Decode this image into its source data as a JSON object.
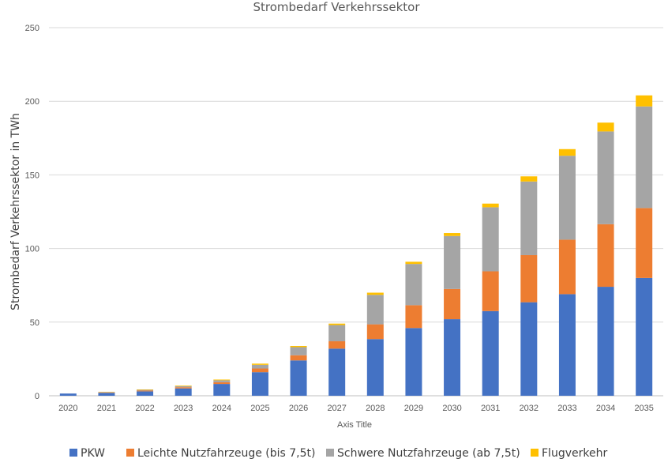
{
  "chart_data": {
    "type": "bar",
    "stacked": true,
    "title": "Strombedarf Verkehrssektor",
    "xlabel": "Axis Title",
    "ylabel": "Strombedarf Verkehrssektor in TWh",
    "ylim": [
      0,
      250
    ],
    "yticks": [
      0,
      50,
      100,
      150,
      200,
      250
    ],
    "grid": true,
    "legend": "bottom",
    "categories": [
      "2020",
      "2021",
      "2022",
      "2023",
      "2024",
      "2025",
      "2026",
      "2027",
      "2028",
      "2029",
      "2030",
      "2031",
      "2032",
      "2033",
      "2034",
      "2035"
    ],
    "series": [
      {
        "name": "PKW",
        "color": "#4472C4",
        "values": [
          1.5,
          2,
          3,
          5,
          8,
          16,
          24,
          32,
          38.5,
          46,
          52,
          57.5,
          63.5,
          69,
          74,
          80
        ]
      },
      {
        "name": "Leichte Nutzfahrzeuge (bis 7,5t)",
        "color": "#ED7D31",
        "values": [
          0,
          0.3,
          0.5,
          0.8,
          1.2,
          2.5,
          3.5,
          5,
          10,
          15.5,
          20.5,
          27,
          32,
          37,
          42.5,
          47.5
        ]
      },
      {
        "name": "Schwere Nutzfahrzeuge (ab 7,5t)",
        "color": "#A5A5A5",
        "values": [
          0,
          0.2,
          0.5,
          0.7,
          1.3,
          2.5,
          5.5,
          11,
          20,
          28,
          36,
          43.5,
          50,
          57,
          63,
          69
        ]
      },
      {
        "name": "Flugverkehr",
        "color": "#FFC000",
        "values": [
          0,
          0.2,
          0.3,
          0.4,
          0.5,
          0.8,
          0.8,
          1,
          1.5,
          1.5,
          2,
          2.5,
          3.5,
          4.5,
          6,
          7.5
        ]
      }
    ]
  }
}
